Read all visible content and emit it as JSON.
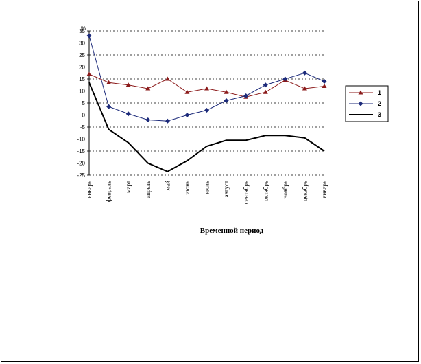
{
  "chart_data": {
    "type": "line",
    "ylabel": "%",
    "xlabel": "Временной период",
    "ylim": [
      -25,
      35
    ],
    "ytick_step": 5,
    "grid": true,
    "legend_position": "right",
    "categories": [
      "январь",
      "февраль",
      "март",
      "апрель",
      "май",
      "июнь",
      "июль",
      "август",
      "сентябрь",
      "октябрь",
      "ноябрь",
      "декабрь",
      "январь"
    ],
    "series": [
      {
        "name": "1",
        "marker": "triangle",
        "color": "#8b1a1a",
        "values": [
          17,
          13.5,
          12.5,
          11,
          15,
          9.5,
          11,
          9.5,
          7.5,
          9.5,
          14.5,
          11,
          12
        ]
      },
      {
        "name": "2",
        "marker": "diamond",
        "color": "#1c2a7a",
        "values": [
          33,
          3.5,
          0.5,
          -2,
          -2.5,
          0,
          2,
          6,
          8,
          12.5,
          15,
          17.5,
          14
        ]
      },
      {
        "name": "3",
        "marker": "none",
        "color": "#000000",
        "values": [
          13.5,
          -6,
          -11.5,
          -20,
          -23.5,
          -19,
          -13,
          -10.5,
          -10.5,
          -8.5,
          -8.5,
          -9.5,
          -15
        ]
      }
    ]
  }
}
